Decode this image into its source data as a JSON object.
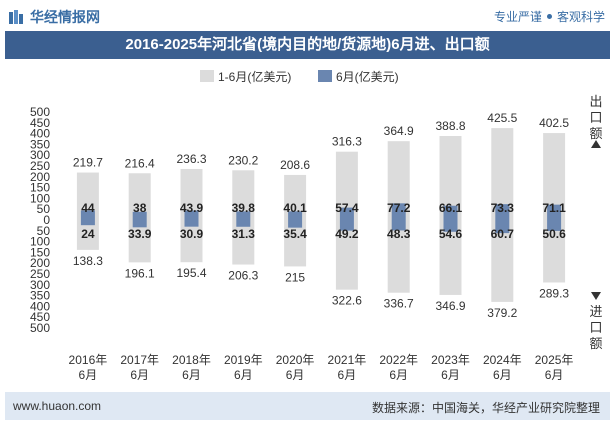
{
  "header": {
    "logo_text": "华经情报网",
    "tagline_left": "专业严谨",
    "tagline_right": "客观科学"
  },
  "chart_data": {
    "type": "bar",
    "title": "2016-2025年河北省(境内目的地/货源地)6月进、出口额",
    "categories": [
      "2016年\n6月",
      "2017年\n6月",
      "2018年\n6月",
      "2019年\n6月",
      "2020年\n6月",
      "2021年\n6月",
      "2022年\n6月",
      "2023年\n6月",
      "2024年\n6月",
      "2025年\n6月"
    ],
    "series": [
      {
        "name": "1-6月(亿美元)",
        "export_values": [
          219.7,
          216.4,
          236.3,
          230.2,
          208.6,
          316.3,
          364.9,
          388.8,
          425.5,
          402.5
        ],
        "import_values": [
          138.3,
          196.1,
          195.4,
          206.3,
          215,
          322.6,
          336.7,
          346.9,
          379.2,
          289.3
        ]
      },
      {
        "name": "6月(亿美元)",
        "export_values": [
          44,
          38,
          43.9,
          39.8,
          40.1,
          57.4,
          77.2,
          66.1,
          73.3,
          71.1
        ],
        "import_values": [
          24,
          33.9,
          30.9,
          31.3,
          35.4,
          49.2,
          48.3,
          54.6,
          60.7,
          50.6
        ]
      }
    ],
    "y_ticks": [
      "500",
      "450",
      "400",
      "350",
      "300",
      "250",
      "200",
      "150",
      "100",
      "50",
      "0",
      "50",
      "100",
      "150",
      "200",
      "250",
      "300",
      "350",
      "400",
      "450",
      "500"
    ],
    "ylim": [
      -500,
      500
    ],
    "export_axis_label": "出口额",
    "import_axis_label": "进口额",
    "legend_position": "top-center",
    "grid": false,
    "colors": {
      "cumulative": "#dcdcdc",
      "monthly": "#6a86b0",
      "axis_arrow": "#333333"
    }
  },
  "footer": {
    "site": "www.huaon.com",
    "source": "数据来源：中国海关，华经产业研究院整理"
  }
}
